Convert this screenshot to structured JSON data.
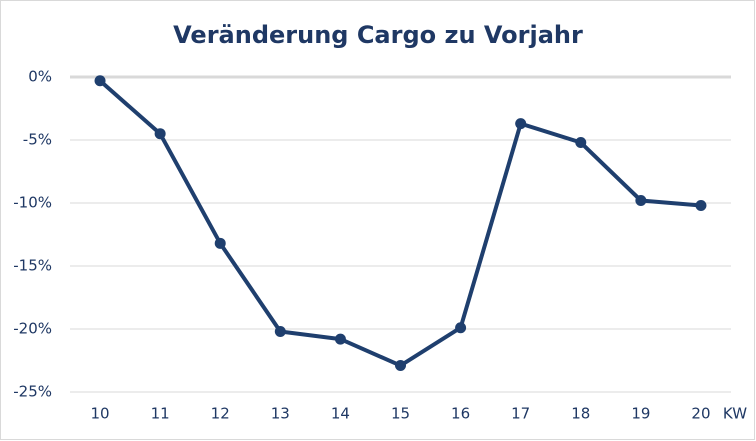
{
  "chart_data": {
    "type": "line",
    "title": "Veränderung Cargo zu Vorjahr",
    "x_label": "KW",
    "categories": [
      "10",
      "11",
      "12",
      "13",
      "14",
      "15",
      "16",
      "17",
      "18",
      "19",
      "20"
    ],
    "series": [
      {
        "name": "Veränderung Cargo",
        "color": "#1f3f6e",
        "values": [
          -0.3,
          -4.5,
          -13.2,
          -20.2,
          -20.8,
          -22.9,
          -19.9,
          -3.7,
          -5.2,
          -9.8,
          -10.2
        ]
      }
    ],
    "ylim": [
      -25,
      0
    ],
    "yticks": [
      {
        "value": -25,
        "label": "-25%"
      },
      {
        "value": -20,
        "label": "-20%"
      },
      {
        "value": -15,
        "label": "-15%"
      },
      {
        "value": -10,
        "label": "-10%"
      },
      {
        "value": -5,
        "label": "-5%"
      },
      {
        "value": 0,
        "label": "0%"
      }
    ],
    "grid": true
  }
}
